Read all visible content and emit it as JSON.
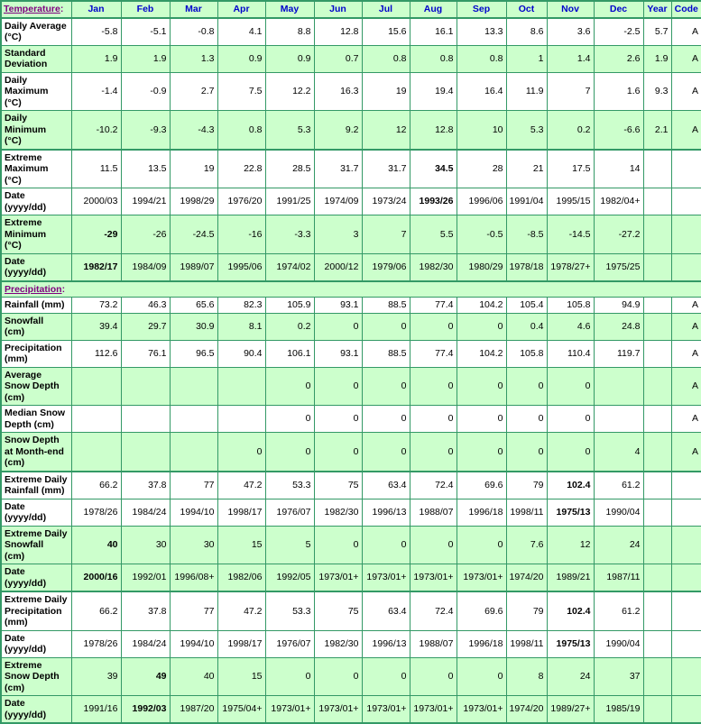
{
  "colors": {
    "row_green": "#ccffcc",
    "border_green": "#339966",
    "label_blue": "#0000cc",
    "link_purple": "#800080"
  },
  "header": {
    "temperature_link": "Temperature",
    "colon": ":",
    "months": [
      "Jan",
      "Feb",
      "Mar",
      "Apr",
      "May",
      "Jun",
      "Jul",
      "Aug",
      "Sep",
      "Oct",
      "Nov",
      "Dec"
    ],
    "year_label": "Year",
    "code_label": "Code"
  },
  "rows": [
    {
      "type": "data",
      "label": "Daily Average\n(°C)",
      "values": [
        "-5.8",
        "-5.1",
        "-0.8",
        "4.1",
        "8.8",
        "12.8",
        "15.6",
        "16.1",
        "13.3",
        "8.6",
        "3.6",
        "-2.5"
      ],
      "year": "5.7",
      "code": "A",
      "shade": "white",
      "bold": [],
      "group_start": true
    },
    {
      "type": "data",
      "label": "Standard\nDeviation",
      "values": [
        "1.9",
        "1.9",
        "1.3",
        "0.9",
        "0.9",
        "0.7",
        "0.8",
        "0.8",
        "0.8",
        "1",
        "1.4",
        "2.6"
      ],
      "year": "1.9",
      "code": "A",
      "shade": "green",
      "bold": [],
      "group_start": false
    },
    {
      "type": "data",
      "label": "Daily\nMaximum\n(°C)",
      "values": [
        "-1.4",
        "-0.9",
        "2.7",
        "7.5",
        "12.2",
        "16.3",
        "19",
        "19.4",
        "16.4",
        "11.9",
        "7",
        "1.6"
      ],
      "year": "9.3",
      "code": "A",
      "shade": "white",
      "bold": [],
      "group_start": false
    },
    {
      "type": "data",
      "label": "Daily\nMinimum\n(°C)",
      "values": [
        "-10.2",
        "-9.3",
        "-4.3",
        "0.8",
        "5.3",
        "9.2",
        "12",
        "12.8",
        "10",
        "5.3",
        "0.2",
        "-6.6"
      ],
      "year": "2.1",
      "code": "A",
      "shade": "green",
      "bold": [],
      "group_start": false
    },
    {
      "type": "data",
      "label": "Extreme\nMaximum\n(°C)",
      "values": [
        "11.5",
        "13.5",
        "19",
        "22.8",
        "28.5",
        "31.7",
        "31.7",
        "34.5",
        "28",
        "21",
        "17.5",
        "14"
      ],
      "year": "",
      "code": "",
      "shade": "white",
      "bold": [
        7
      ],
      "group_start": true
    },
    {
      "type": "data",
      "label": "Date\n(yyyy/dd)",
      "values": [
        "2000/03",
        "1994/21",
        "1998/29",
        "1976/20",
        "1991/25",
        "1974/09",
        "1973/24",
        "1993/26",
        "1996/06",
        "1991/04",
        "1995/15",
        "1982/04+"
      ],
      "year": "",
      "code": "",
      "shade": "white",
      "bold": [
        7
      ],
      "group_start": false
    },
    {
      "type": "data",
      "label": "Extreme\nMinimum\n(°C)",
      "values": [
        "-29",
        "-26",
        "-24.5",
        "-16",
        "-3.3",
        "3",
        "7",
        "5.5",
        "-0.5",
        "-8.5",
        "-14.5",
        "-27.2"
      ],
      "year": "",
      "code": "",
      "shade": "green",
      "bold": [
        0
      ],
      "group_start": false
    },
    {
      "type": "data",
      "label": "Date\n(yyyy/dd)",
      "values": [
        "1982/17",
        "1984/09",
        "1989/07",
        "1995/06",
        "1974/02",
        "2000/12",
        "1979/06",
        "1982/30",
        "1980/29",
        "1978/18",
        "1978/27+",
        "1975/25"
      ],
      "year": "",
      "code": "",
      "shade": "green",
      "bold": [
        0
      ],
      "group_start": false
    },
    {
      "type": "section",
      "label": "Precipitation",
      "colon": ":",
      "shade": "green",
      "group_start": true
    },
    {
      "type": "data",
      "label": "Rainfall (mm)",
      "values": [
        "73.2",
        "46.3",
        "65.6",
        "82.3",
        "105.9",
        "93.1",
        "88.5",
        "77.4",
        "104.2",
        "105.4",
        "105.8",
        "94.9"
      ],
      "year": "",
      "code": "A",
      "shade": "white",
      "bold": [],
      "group_start": false
    },
    {
      "type": "data",
      "label": "Snowfall\n(cm)",
      "values": [
        "39.4",
        "29.7",
        "30.9",
        "8.1",
        "0.2",
        "0",
        "0",
        "0",
        "0",
        "0.4",
        "4.6",
        "24.8"
      ],
      "year": "",
      "code": "A",
      "shade": "green",
      "bold": [],
      "group_start": false
    },
    {
      "type": "data",
      "label": "Precipitation\n(mm)",
      "values": [
        "112.6",
        "76.1",
        "96.5",
        "90.4",
        "106.1",
        "93.1",
        "88.5",
        "77.4",
        "104.2",
        "105.8",
        "110.4",
        "119.7"
      ],
      "year": "",
      "code": "A",
      "shade": "white",
      "bold": [],
      "group_start": false
    },
    {
      "type": "data",
      "label": "Average\nSnow Depth\n(cm)",
      "values": [
        "",
        "",
        "",
        "",
        "0",
        "0",
        "0",
        "0",
        "0",
        "0",
        "0",
        ""
      ],
      "year": "",
      "code": "A",
      "shade": "green",
      "bold": [],
      "group_start": false
    },
    {
      "type": "data",
      "label": "Median Snow\nDepth (cm)",
      "values": [
        "",
        "",
        "",
        "",
        "0",
        "0",
        "0",
        "0",
        "0",
        "0",
        "0",
        ""
      ],
      "year": "",
      "code": "A",
      "shade": "white",
      "bold": [],
      "group_start": false
    },
    {
      "type": "data",
      "label": "Snow Depth\nat Month-end\n(cm)",
      "values": [
        "",
        "",
        "",
        "0",
        "0",
        "0",
        "0",
        "0",
        "0",
        "0",
        "0",
        "4"
      ],
      "year": "",
      "code": "A",
      "shade": "green",
      "bold": [],
      "group_start": false
    },
    {
      "type": "data",
      "label": "Extreme Daily\nRainfall (mm)",
      "values": [
        "66.2",
        "37.8",
        "77",
        "47.2",
        "53.3",
        "75",
        "63.4",
        "72.4",
        "69.6",
        "79",
        "102.4",
        "61.2"
      ],
      "year": "",
      "code": "",
      "shade": "white",
      "bold": [
        10
      ],
      "group_start": true
    },
    {
      "type": "data",
      "label": "Date\n(yyyy/dd)",
      "values": [
        "1978/26",
        "1984/24",
        "1994/10",
        "1998/17",
        "1976/07",
        "1982/30",
        "1996/13",
        "1988/07",
        "1996/18",
        "1998/11",
        "1975/13",
        "1990/04"
      ],
      "year": "",
      "code": "",
      "shade": "white",
      "bold": [
        10
      ],
      "group_start": false
    },
    {
      "type": "data",
      "label": "Extreme Daily\nSnowfall\n(cm)",
      "values": [
        "40",
        "30",
        "30",
        "15",
        "5",
        "0",
        "0",
        "0",
        "0",
        "7.6",
        "12",
        "24"
      ],
      "year": "",
      "code": "",
      "shade": "green",
      "bold": [
        0
      ],
      "group_start": false
    },
    {
      "type": "data",
      "label": "Date\n(yyyy/dd)",
      "values": [
        "2000/16",
        "1992/01",
        "1996/08+",
        "1982/06",
        "1992/05",
        "1973/01+",
        "1973/01+",
        "1973/01+",
        "1973/01+",
        "1974/20",
        "1989/21",
        "1987/11"
      ],
      "year": "",
      "code": "",
      "shade": "green",
      "bold": [
        0
      ],
      "group_start": false
    },
    {
      "type": "data",
      "label": "Extreme Daily\nPrecipitation\n(mm)",
      "values": [
        "66.2",
        "37.8",
        "77",
        "47.2",
        "53.3",
        "75",
        "63.4",
        "72.4",
        "69.6",
        "79",
        "102.4",
        "61.2"
      ],
      "year": "",
      "code": "",
      "shade": "white",
      "bold": [
        10
      ],
      "group_start": true
    },
    {
      "type": "data",
      "label": "Date\n(yyyy/dd)",
      "values": [
        "1978/26",
        "1984/24",
        "1994/10",
        "1998/17",
        "1976/07",
        "1982/30",
        "1996/13",
        "1988/07",
        "1996/18",
        "1998/11",
        "1975/13",
        "1990/04"
      ],
      "year": "",
      "code": "",
      "shade": "white",
      "bold": [
        10
      ],
      "group_start": false
    },
    {
      "type": "data",
      "label": "Extreme\nSnow Depth\n(cm)",
      "values": [
        "39",
        "49",
        "40",
        "15",
        "0",
        "0",
        "0",
        "0",
        "0",
        "8",
        "24",
        "37"
      ],
      "year": "",
      "code": "",
      "shade": "green",
      "bold": [
        1
      ],
      "group_start": false
    },
    {
      "type": "data",
      "label": "Date\n(yyyy/dd)",
      "values": [
        "1991/16",
        "1992/03",
        "1987/20",
        "1975/04+",
        "1973/01+",
        "1973/01+",
        "1973/01+",
        "1973/01+",
        "1973/01+",
        "1974/20",
        "1989/27+",
        "1985/19"
      ],
      "year": "",
      "code": "",
      "shade": "green",
      "bold": [
        1
      ],
      "group_start": false
    }
  ]
}
